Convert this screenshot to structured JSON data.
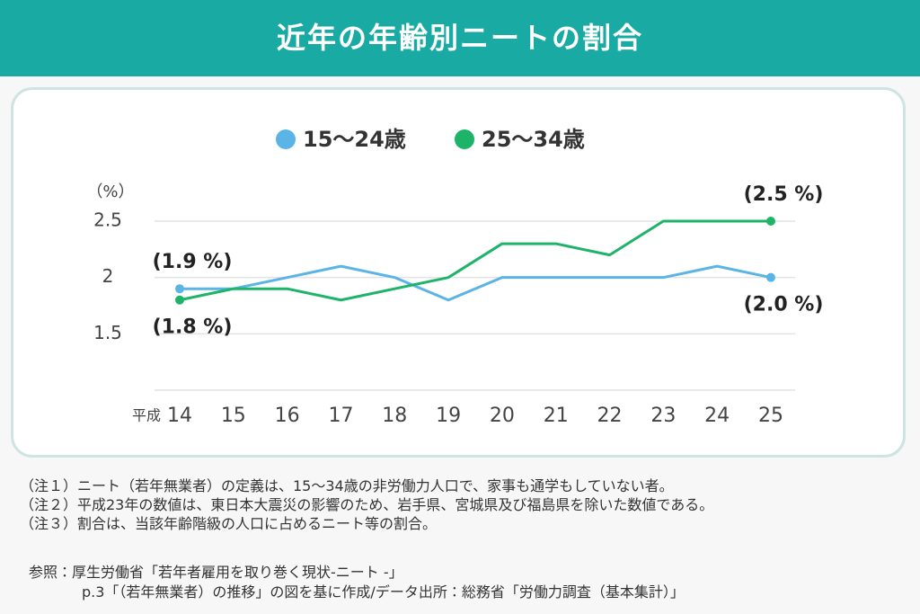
{
  "chart_data": {
    "type": "line",
    "title": "近年の年齢別ニートの割合",
    "y_unit": "（%）",
    "x_axis_label": "平成",
    "categories": [
      "14",
      "15",
      "16",
      "17",
      "18",
      "19",
      "20",
      "21",
      "22",
      "23",
      "24",
      "25"
    ],
    "series": [
      {
        "name": "15〜24歳",
        "color": "#5ab4e6",
        "values": [
          1.9,
          1.9,
          2.0,
          2.1,
          2.0,
          1.8,
          2.0,
          2.0,
          2.0,
          2.0,
          2.1,
          2.0
        ],
        "value_labels": [
          "(1.9 %)",
          null,
          null,
          null,
          null,
          null,
          null,
          null,
          null,
          null,
          null,
          "(2.0 %)"
        ]
      },
      {
        "name": "25〜34歳",
        "color": "#1db46a",
        "values": [
          1.8,
          1.9,
          1.9,
          1.8,
          1.9,
          2.0,
          2.3,
          2.3,
          2.2,
          2.5,
          2.5,
          2.5
        ],
        "value_labels": [
          "(1.8 %)",
          null,
          null,
          null,
          null,
          null,
          null,
          null,
          null,
          null,
          null,
          "(2.5 %)"
        ]
      }
    ],
    "ylim": [
      1.0,
      2.5
    ],
    "yticks": [
      1.5,
      2.0,
      2.5
    ],
    "grid": true
  },
  "notes": [
    "（注１）ニート（若年無業者）の定義は、15〜34歳の非労働力人口で、家事も通学もしていない者。",
    "（注２）平成23年の数値は、東日本大震災の影響のため、岩手県、宮城県及び福島県を除いた数値である。",
    "（注３）割合は、当該年齢階級の人口に占めるニート等の割合。"
  ],
  "reference": {
    "label": "参照：",
    "lines": [
      "厚生労働省「若年者雇用を取り巻く現状-ニート -」",
      "p.3「（若年無業者）の推移」の図を基に作成/データ出所：総務省「労働力調査（基本集計）」"
    ]
  }
}
